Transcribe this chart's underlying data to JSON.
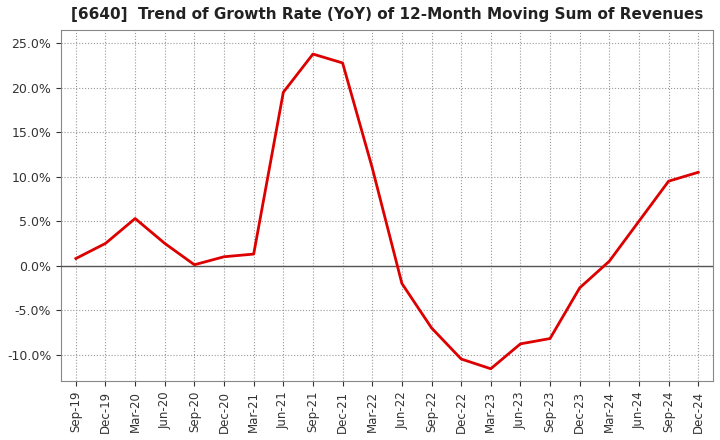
{
  "title": "[6640]  Trend of Growth Rate (YoY) of 12-Month Moving Sum of Revenues",
  "line_color": "#dd0000",
  "background_color": "#ffffff",
  "grid_color": "#999999",
  "plot_bg_color": "#ffffff",
  "ylim": [
    -0.13,
    0.265
  ],
  "yticks": [
    -0.1,
    -0.05,
    0.0,
    0.05,
    0.1,
    0.15,
    0.2,
    0.25
  ],
  "labels": [
    "Sep-19",
    "Dec-19",
    "Mar-20",
    "Jun-20",
    "Sep-20",
    "Dec-20",
    "Mar-21",
    "Jun-21",
    "Sep-21",
    "Dec-21",
    "Mar-22",
    "Jun-22",
    "Sep-22",
    "Dec-22",
    "Mar-23",
    "Jun-23",
    "Sep-23",
    "Dec-23",
    "Mar-24",
    "Jun-24",
    "Sep-24",
    "Dec-24"
  ],
  "values": [
    0.008,
    0.025,
    0.053,
    0.025,
    0.001,
    0.01,
    0.013,
    0.195,
    0.238,
    0.228,
    0.11,
    -0.02,
    -0.07,
    -0.105,
    -0.116,
    -0.088,
    -0.082,
    -0.025,
    0.005,
    0.05,
    0.095,
    0.105
  ]
}
